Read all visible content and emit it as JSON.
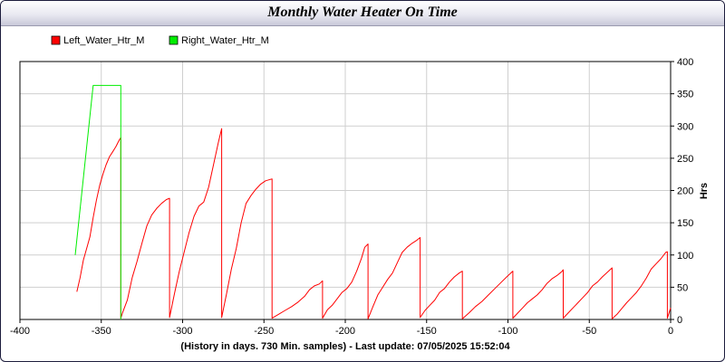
{
  "chart_data": {
    "type": "line",
    "title": "Monthly Water Heater On Time",
    "xlabel": "(History in days. 730 Min. samples) - Last update: 07/05/2025 15:52:04",
    "ylabel": "Hrs",
    "xlim": [
      -400,
      0
    ],
    "ylim": [
      0,
      400
    ],
    "x_ticks": [
      -400,
      -350,
      -300,
      -250,
      -200,
      -150,
      -100,
      -50,
      0
    ],
    "y_ticks": [
      0,
      50,
      100,
      150,
      200,
      250,
      300,
      350,
      400
    ],
    "grid": true,
    "legend_position": "top-left",
    "series": [
      {
        "name": "Left_Water_Htr_M",
        "color": "#ff0000",
        "points": [
          [
            -365,
            43
          ],
          [
            -363,
            65
          ],
          [
            -361,
            92
          ],
          [
            -359,
            110
          ],
          [
            -357,
            128
          ],
          [
            -355,
            158
          ],
          [
            -353,
            185
          ],
          [
            -351,
            208
          ],
          [
            -349,
            225
          ],
          [
            -347,
            240
          ],
          [
            -345,
            252
          ],
          [
            -343,
            260
          ],
          [
            -341,
            268
          ],
          [
            -339,
            278
          ],
          [
            -338,
            282
          ],
          [
            -338,
            2
          ],
          [
            -337,
            10
          ],
          [
            -334,
            30
          ],
          [
            -331,
            65
          ],
          [
            -328,
            90
          ],
          [
            -325,
            118
          ],
          [
            -322,
            145
          ],
          [
            -319,
            162
          ],
          [
            -316,
            172
          ],
          [
            -313,
            180
          ],
          [
            -310,
            186
          ],
          [
            -308,
            188
          ],
          [
            -308,
            3
          ],
          [
            -305,
            40
          ],
          [
            -302,
            75
          ],
          [
            -299,
            105
          ],
          [
            -296,
            135
          ],
          [
            -293,
            160
          ],
          [
            -290,
            176
          ],
          [
            -288,
            180
          ],
          [
            -287,
            182
          ],
          [
            -284,
            205
          ],
          [
            -281,
            240
          ],
          [
            -278,
            275
          ],
          [
            -276,
            296
          ],
          [
            -276,
            3
          ],
          [
            -273,
            40
          ],
          [
            -270,
            78
          ],
          [
            -267,
            110
          ],
          [
            -264,
            150
          ],
          [
            -261,
            180
          ],
          [
            -258,
            192
          ],
          [
            -255,
            202
          ],
          [
            -252,
            210
          ],
          [
            -249,
            215
          ],
          [
            -245,
            218
          ],
          [
            -245,
            2
          ],
          [
            -241,
            8
          ],
          [
            -237,
            14
          ],
          [
            -233,
            20
          ],
          [
            -229,
            27
          ],
          [
            -225,
            36
          ],
          [
            -222,
            46
          ],
          [
            -219,
            52
          ],
          [
            -216,
            55
          ],
          [
            -214,
            60
          ],
          [
            -214,
            2
          ],
          [
            -211,
            15
          ],
          [
            -208,
            22
          ],
          [
            -205,
            32
          ],
          [
            -202,
            42
          ],
          [
            -199,
            48
          ],
          [
            -196,
            58
          ],
          [
            -193,
            75
          ],
          [
            -190,
            95
          ],
          [
            -188,
            112
          ],
          [
            -186,
            117
          ],
          [
            -186,
            1
          ],
          [
            -183,
            20
          ],
          [
            -180,
            38
          ],
          [
            -177,
            50
          ],
          [
            -174,
            62
          ],
          [
            -171,
            72
          ],
          [
            -168,
            88
          ],
          [
            -165,
            104
          ],
          [
            -162,
            112
          ],
          [
            -159,
            118
          ],
          [
            -156,
            123
          ],
          [
            -154,
            127
          ],
          [
            -154,
            3
          ],
          [
            -151,
            14
          ],
          [
            -148,
            22
          ],
          [
            -145,
            30
          ],
          [
            -142,
            42
          ],
          [
            -139,
            48
          ],
          [
            -136,
            58
          ],
          [
            -133,
            66
          ],
          [
            -130,
            72
          ],
          [
            -128,
            75
          ],
          [
            -128,
            1
          ],
          [
            -124,
            10
          ],
          [
            -120,
            20
          ],
          [
            -116,
            28
          ],
          [
            -112,
            38
          ],
          [
            -108,
            48
          ],
          [
            -104,
            58
          ],
          [
            -100,
            68
          ],
          [
            -97,
            75
          ],
          [
            -97,
            2
          ],
          [
            -94,
            10
          ],
          [
            -91,
            18
          ],
          [
            -88,
            26
          ],
          [
            -85,
            32
          ],
          [
            -82,
            38
          ],
          [
            -79,
            46
          ],
          [
            -76,
            56
          ],
          [
            -73,
            63
          ],
          [
            -70,
            68
          ],
          [
            -67,
            74
          ],
          [
            -66,
            77
          ],
          [
            -66,
            2
          ],
          [
            -63,
            10
          ],
          [
            -60,
            18
          ],
          [
            -57,
            26
          ],
          [
            -54,
            34
          ],
          [
            -51,
            42
          ],
          [
            -48,
            52
          ],
          [
            -45,
            58
          ],
          [
            -42,
            66
          ],
          [
            -39,
            73
          ],
          [
            -36,
            80
          ],
          [
            -36,
            1
          ],
          [
            -33,
            8
          ],
          [
            -30,
            17
          ],
          [
            -27,
            26
          ],
          [
            -24,
            34
          ],
          [
            -21,
            42
          ],
          [
            -18,
            52
          ],
          [
            -15,
            64
          ],
          [
            -12,
            78
          ],
          [
            -9,
            86
          ],
          [
            -6,
            94
          ],
          [
            -3,
            104
          ],
          [
            -2,
            105
          ],
          [
            -2,
            2
          ],
          [
            0,
            18
          ]
        ]
      },
      {
        "name": "Right_Water_Htr_M",
        "color": "#00ee00",
        "points": [
          [
            -366,
            100
          ],
          [
            -355,
            363
          ],
          [
            -338,
            363
          ],
          [
            -338,
            0
          ]
        ]
      }
    ]
  }
}
